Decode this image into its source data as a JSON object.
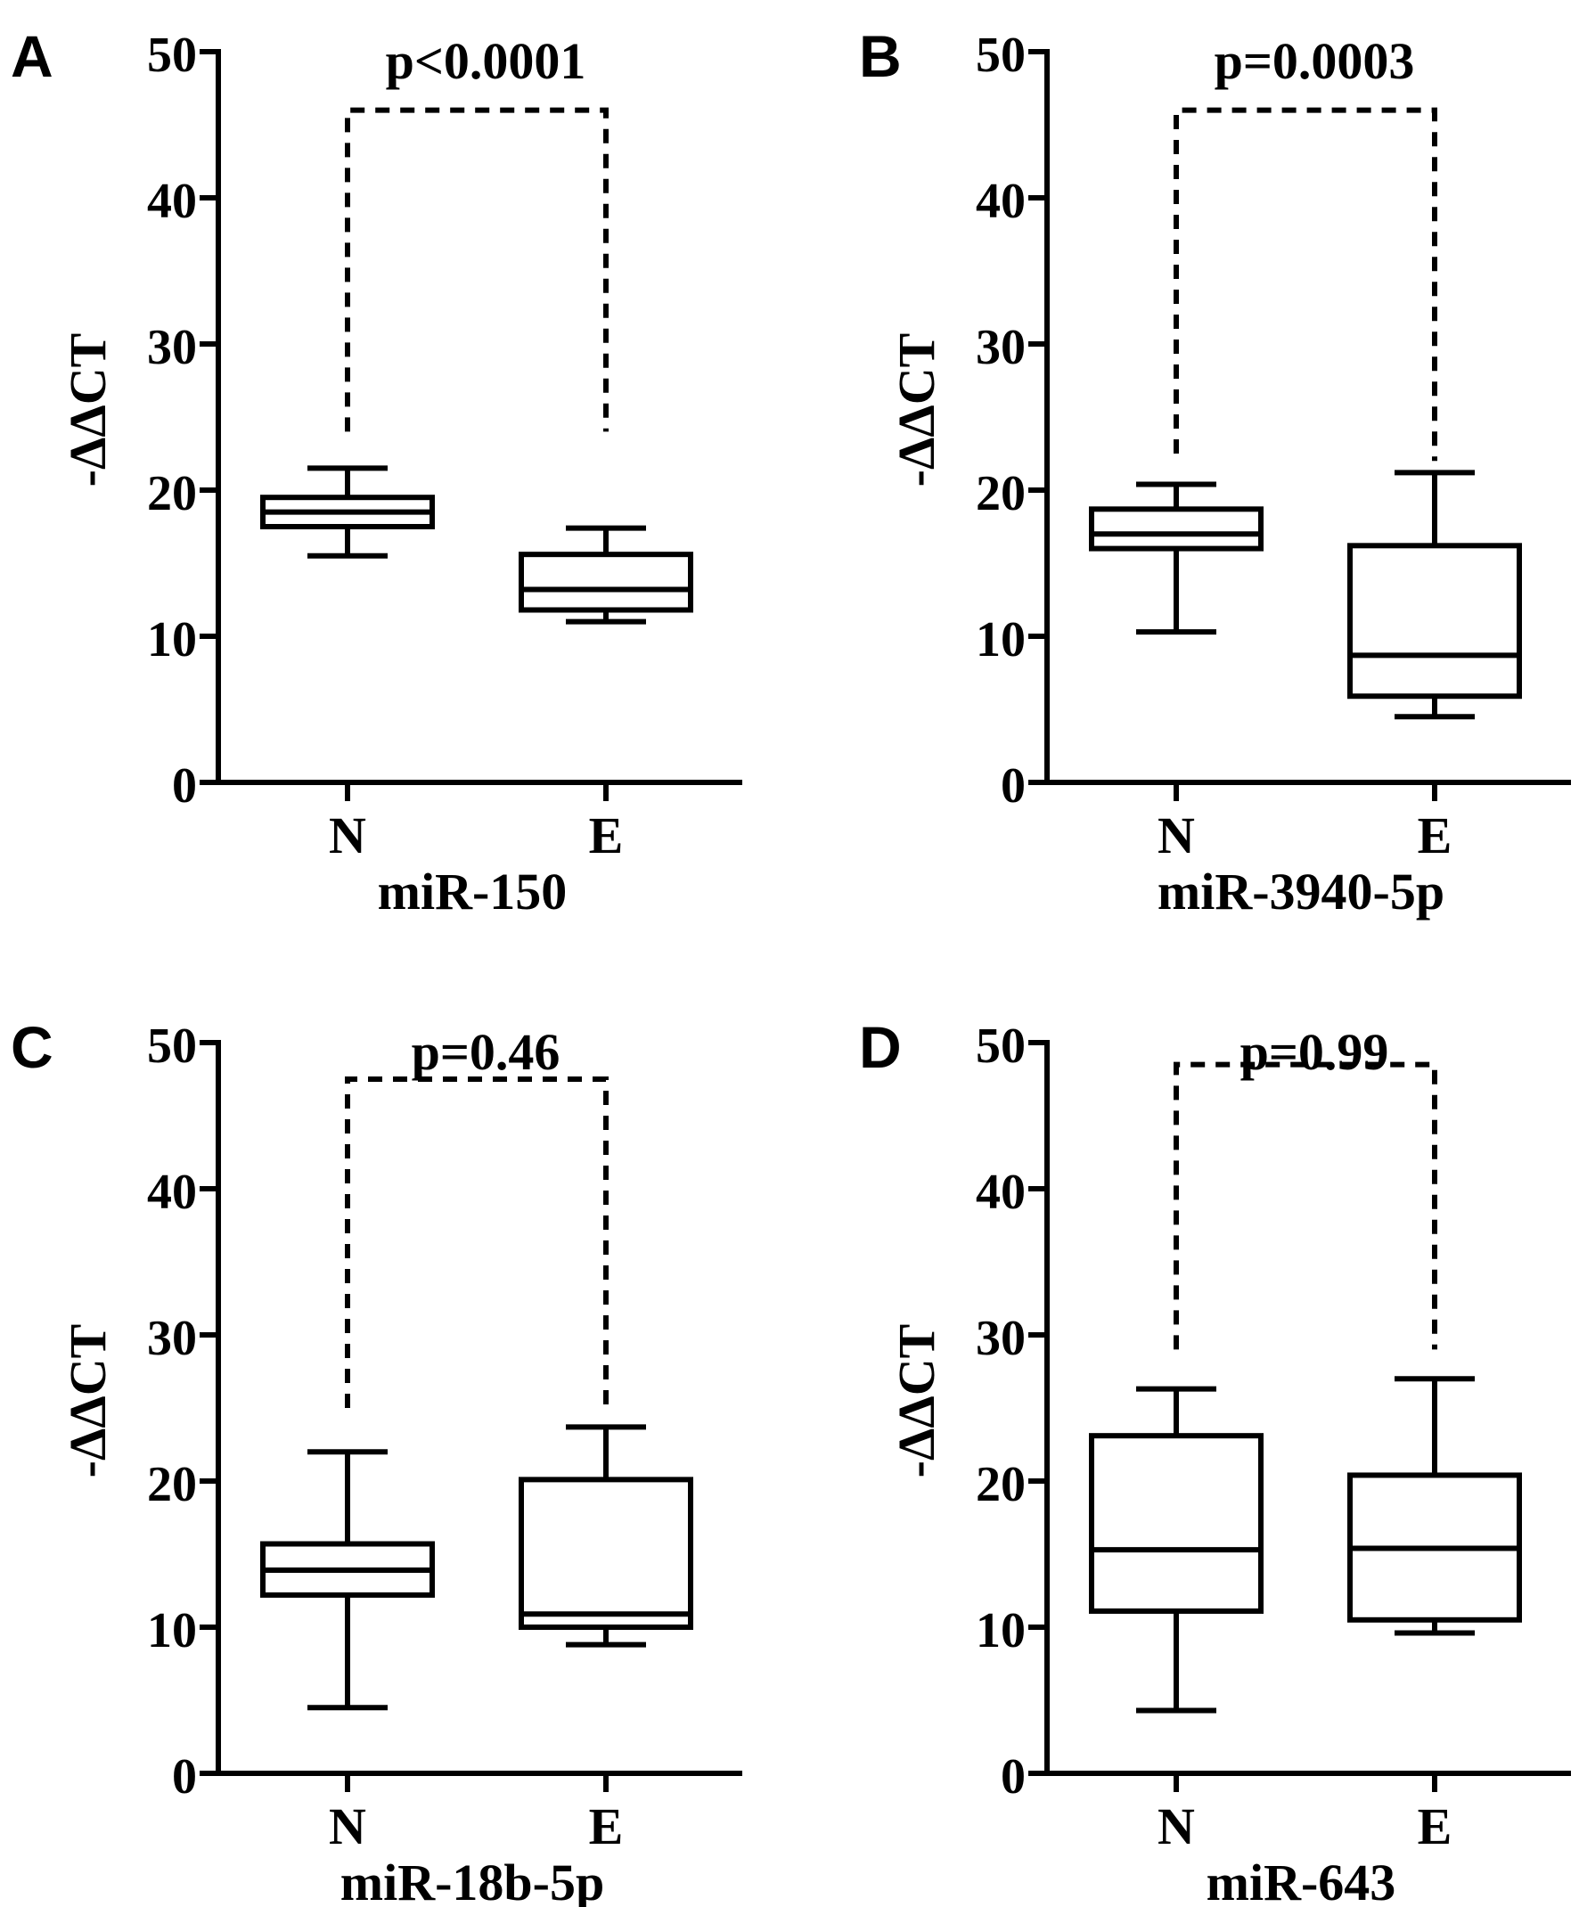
{
  "chart_data": [
    {
      "panel": "A",
      "type": "box",
      "xlabel": "miR-150",
      "ylabel": "-ΔΔCT",
      "ylim": [
        0,
        50
      ],
      "yticks": [
        0,
        10,
        20,
        30,
        40,
        50
      ],
      "categories": [
        "N",
        "E"
      ],
      "series": [
        {
          "category": "N",
          "min": 15.5,
          "q1": 17.5,
          "median": 18.5,
          "q3": 19.5,
          "max": 21.5
        },
        {
          "category": "E",
          "min": 11.0,
          "q1": 11.8,
          "median": 13.2,
          "q3": 15.6,
          "max": 17.4
        }
      ],
      "annotation": "p<0.0001",
      "bracket": {
        "y": 46,
        "left_end": 24,
        "right_end": 24
      }
    },
    {
      "panel": "B",
      "type": "box",
      "xlabel": "miR-3940-5p",
      "ylabel": "-ΔΔCT",
      "ylim": [
        0,
        50
      ],
      "yticks": [
        0,
        10,
        20,
        30,
        40,
        50
      ],
      "categories": [
        "N",
        "E"
      ],
      "series": [
        {
          "category": "N",
          "min": 10.3,
          "q1": 16.0,
          "median": 17.0,
          "q3": 18.7,
          "max": 20.4
        },
        {
          "category": "E",
          "min": 4.5,
          "q1": 5.9,
          "median": 8.7,
          "q3": 16.2,
          "max": 21.2
        }
      ],
      "annotation": "p=0.0003",
      "bracket": {
        "y": 46,
        "left_end": 22.5,
        "right_end": 22
      }
    },
    {
      "panel": "C",
      "type": "box",
      "xlabel": "miR-18b-5p",
      "ylabel": "-ΔΔCT",
      "ylim": [
        0,
        50
      ],
      "yticks": [
        0,
        10,
        20,
        30,
        40,
        50
      ],
      "categories": [
        "N",
        "E"
      ],
      "series": [
        {
          "category": "N",
          "min": 4.5,
          "q1": 12.2,
          "median": 13.9,
          "q3": 15.7,
          "max": 22.0
        },
        {
          "category": "E",
          "min": 8.8,
          "q1": 10.0,
          "median": 10.9,
          "q3": 20.1,
          "max": 23.7
        }
      ],
      "annotation": "p=0.46",
      "bracket": {
        "y": 47.5,
        "left_end": 25,
        "right_end": 25
      }
    },
    {
      "panel": "D",
      "type": "box",
      "xlabel": "miR-643",
      "ylabel": "-ΔΔCT",
      "ylim": [
        0,
        50
      ],
      "yticks": [
        0,
        10,
        20,
        30,
        40,
        50
      ],
      "categories": [
        "N",
        "E"
      ],
      "series": [
        {
          "category": "N",
          "min": 4.3,
          "q1": 11.1,
          "median": 15.3,
          "q3": 23.1,
          "max": 26.3
        },
        {
          "category": "E",
          "min": 9.6,
          "q1": 10.5,
          "median": 15.4,
          "q3": 20.4,
          "max": 27.0
        }
      ],
      "annotation": "p=0.99",
      "bracket": {
        "y": 48.5,
        "left_end": 29,
        "right_end": 29
      }
    }
  ]
}
